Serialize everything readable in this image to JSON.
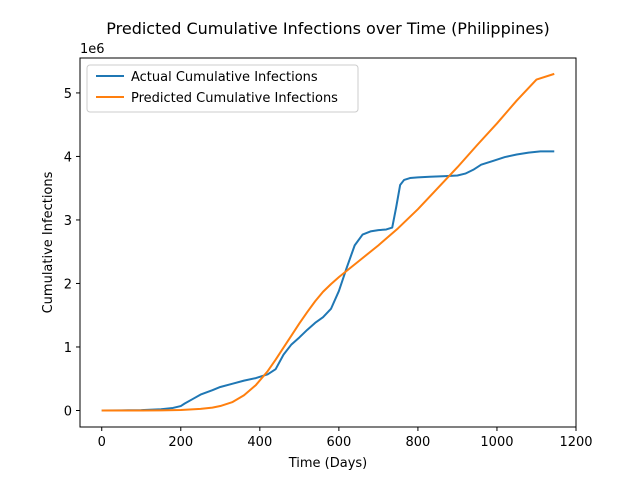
{
  "chart_data": {
    "type": "line",
    "title": "Predicted Cumulative Infections over Time (Philippines)",
    "xlabel": "Time (Days)",
    "ylabel": "Cumulative Infections",
    "y_offset_label": "1e6",
    "xlim": [
      -55,
      1200
    ],
    "ylim": [
      -0.26,
      5.55
    ],
    "y_multiplier": 1000000,
    "xticks": [
      0,
      200,
      400,
      600,
      800,
      1000,
      1200
    ],
    "yticks": [
      0,
      1,
      2,
      3,
      4,
      5
    ],
    "legend_position": "upper-left",
    "grid": false,
    "series": [
      {
        "name": "Actual Cumulative Infections",
        "color": "#1f77b4",
        "x": [
          0,
          50,
          100,
          150,
          180,
          200,
          210,
          230,
          250,
          280,
          300,
          330,
          360,
          390,
          420,
          440,
          460,
          480,
          500,
          520,
          540,
          560,
          580,
          600,
          620,
          640,
          660,
          680,
          700,
          720,
          735,
          745,
          755,
          765,
          780,
          800,
          830,
          870,
          900,
          920,
          940,
          960,
          990,
          1020,
          1050,
          1080,
          1110,
          1145
        ],
        "y": [
          0.0,
          0.002,
          0.006,
          0.02,
          0.04,
          0.07,
          0.11,
          0.18,
          0.25,
          0.32,
          0.37,
          0.42,
          0.47,
          0.51,
          0.57,
          0.65,
          0.88,
          1.04,
          1.15,
          1.27,
          1.38,
          1.47,
          1.6,
          1.88,
          2.25,
          2.6,
          2.77,
          2.82,
          2.84,
          2.85,
          2.88,
          3.2,
          3.55,
          3.63,
          3.66,
          3.67,
          3.68,
          3.69,
          3.7,
          3.73,
          3.79,
          3.87,
          3.93,
          3.99,
          4.03,
          4.06,
          4.08,
          4.08
        ]
      },
      {
        "name": "Predicted Cumulative Infections",
        "color": "#ff7f0e",
        "x": [
          0,
          100,
          150,
          200,
          250,
          280,
          300,
          330,
          360,
          390,
          420,
          440,
          460,
          480,
          500,
          520,
          540,
          560,
          580,
          600,
          620,
          650,
          700,
          750,
          800,
          850,
          900,
          950,
          1000,
          1050,
          1100,
          1145
        ],
        "y": [
          0.0,
          0.0,
          0.002,
          0.008,
          0.025,
          0.045,
          0.07,
          0.13,
          0.24,
          0.4,
          0.62,
          0.8,
          0.99,
          1.18,
          1.37,
          1.55,
          1.72,
          1.87,
          1.99,
          2.1,
          2.2,
          2.35,
          2.6,
          2.87,
          3.17,
          3.5,
          3.83,
          4.18,
          4.52,
          4.88,
          5.21,
          5.3
        ]
      }
    ]
  }
}
